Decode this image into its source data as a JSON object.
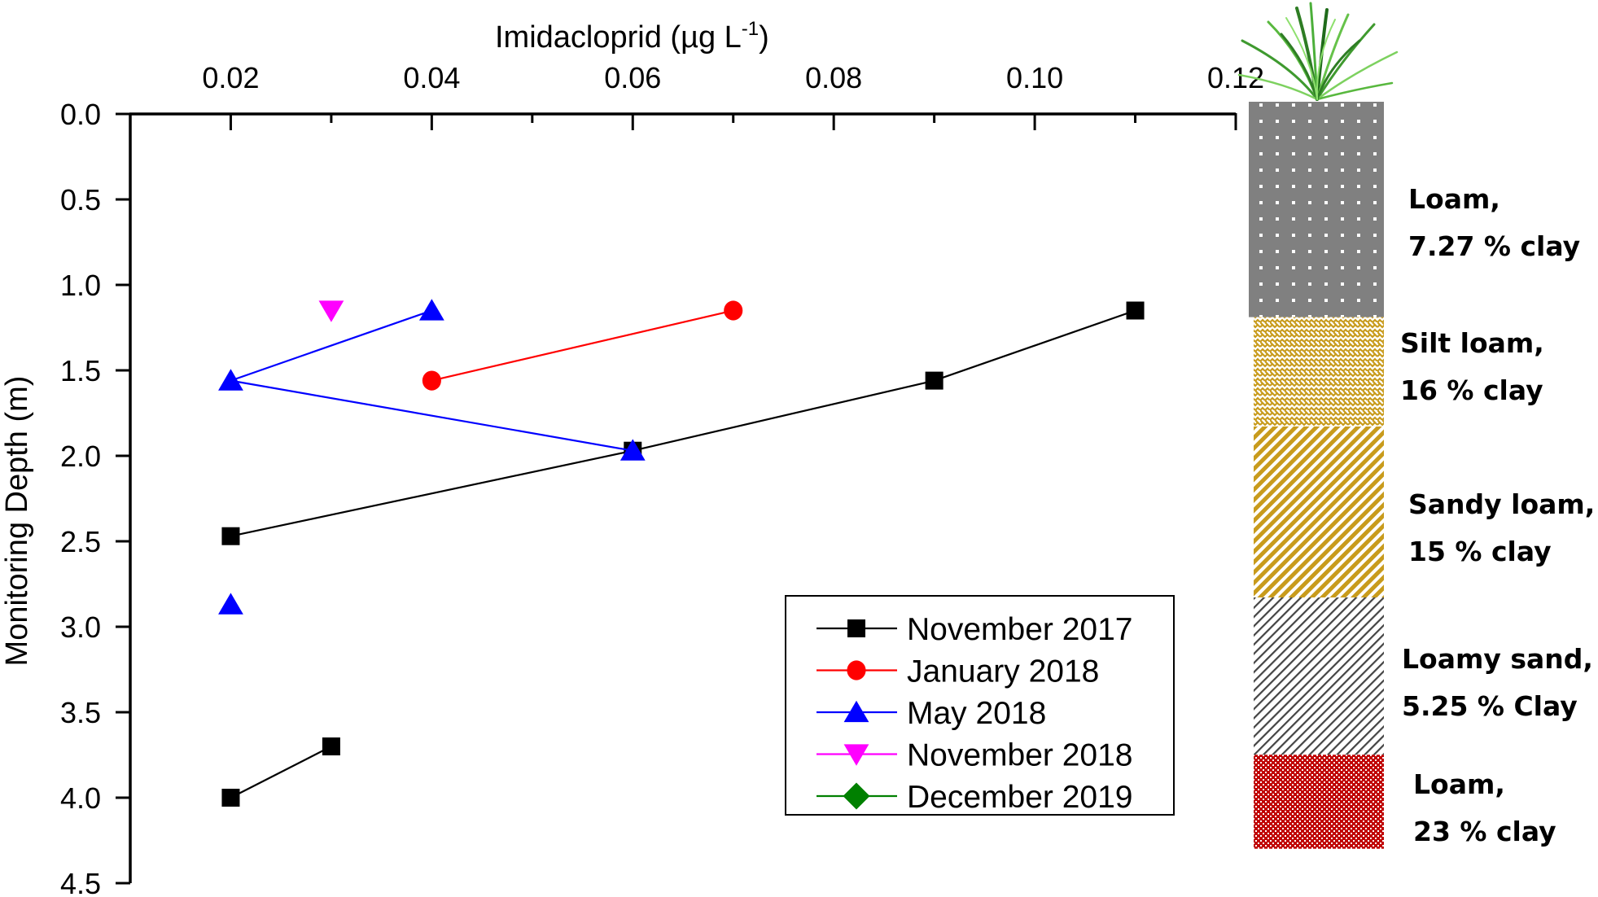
{
  "chart_data": {
    "type": "line",
    "title": "",
    "xlabel": "Imidacloprid (µg L",
    "xlabel_superscript": "-1",
    "xlabel_close": ")",
    "ylabel": "Monitoring Depth (m)",
    "xlim": [
      0.01,
      0.12
    ],
    "ylim": [
      0.0,
      4.5
    ],
    "y_inverted": true,
    "x_axis_position": "top",
    "grid": false,
    "x_ticks": [
      0.02,
      0.04,
      0.06,
      0.08,
      0.1,
      0.12
    ],
    "x_tick_labels": [
      "0.02",
      "0.04",
      "0.06",
      "0.08",
      "0.10",
      "0.12"
    ],
    "x_minor_ticks": [
      0.03,
      0.05,
      0.07,
      0.09,
      0.11
    ],
    "y_ticks": [
      0.0,
      0.5,
      1.0,
      1.5,
      2.0,
      2.5,
      3.0,
      3.5,
      4.0,
      4.5
    ],
    "y_tick_labels": [
      "0.0",
      "0.5",
      "1.0",
      "1.5",
      "2.0",
      "2.5",
      "3.0",
      "3.5",
      "4.0",
      "4.5"
    ],
    "legend_position": "lower-center-right",
    "series": [
      {
        "name": "November 2017",
        "color": "#000000",
        "marker": "square",
        "segments": [
          [
            {
              "x": 0.11,
              "y": 1.15
            },
            {
              "x": 0.09,
              "y": 1.56
            },
            {
              "x": 0.06,
              "y": 1.97
            },
            {
              "x": 0.02,
              "y": 2.47
            }
          ],
          [
            {
              "x": 0.03,
              "y": 3.7
            },
            {
              "x": 0.02,
              "y": 4.0
            }
          ]
        ]
      },
      {
        "name": "January 2018",
        "color": "#ff0000",
        "marker": "circle",
        "segments": [
          [
            {
              "x": 0.07,
              "y": 1.15
            },
            {
              "x": 0.04,
              "y": 1.56
            }
          ]
        ]
      },
      {
        "name": "May 2018",
        "color": "#0000ff",
        "marker": "triangle-up",
        "segments": [
          [
            {
              "x": 0.04,
              "y": 1.15
            },
            {
              "x": 0.02,
              "y": 1.56
            },
            {
              "x": 0.06,
              "y": 1.97
            }
          ],
          [
            {
              "x": 0.02,
              "y": 2.87
            }
          ]
        ]
      },
      {
        "name": "November 2018",
        "color": "#ff00ff",
        "marker": "triangle-down",
        "segments": [
          [
            {
              "x": 0.03,
              "y": 1.15
            }
          ]
        ]
      },
      {
        "name": "December 2019",
        "color": "#008000",
        "marker": "diamond",
        "segments": []
      }
    ],
    "soil_profile": {
      "layers": [
        {
          "name": "Loam,",
          "detail": "7.27 % clay",
          "top_depth": 0.0,
          "bottom_depth": 1.26,
          "pattern": "dots",
          "color": "#808080"
        },
        {
          "name": "Silt loam,",
          "detail": "16 % clay",
          "top_depth": 1.26,
          "bottom_depth": 1.9,
          "pattern": "weave",
          "color": "#c89b1c"
        },
        {
          "name": "Sandy loam,",
          "detail": "15 % clay",
          "top_depth": 1.9,
          "bottom_depth": 2.9,
          "pattern": "diagonal",
          "color": "#c89b1c"
        },
        {
          "name": "Loamy sand,",
          "detail": "5.25 % Clay",
          "top_depth": 2.9,
          "bottom_depth": 3.82,
          "pattern": "diagonal-fine",
          "color": "#444444"
        },
        {
          "name": "Loam,",
          "detail": "23 % clay",
          "top_depth": 3.82,
          "bottom_depth": 4.37,
          "pattern": "checker",
          "color": "#c00000"
        }
      ],
      "surface_icon": "grass-icon"
    }
  }
}
